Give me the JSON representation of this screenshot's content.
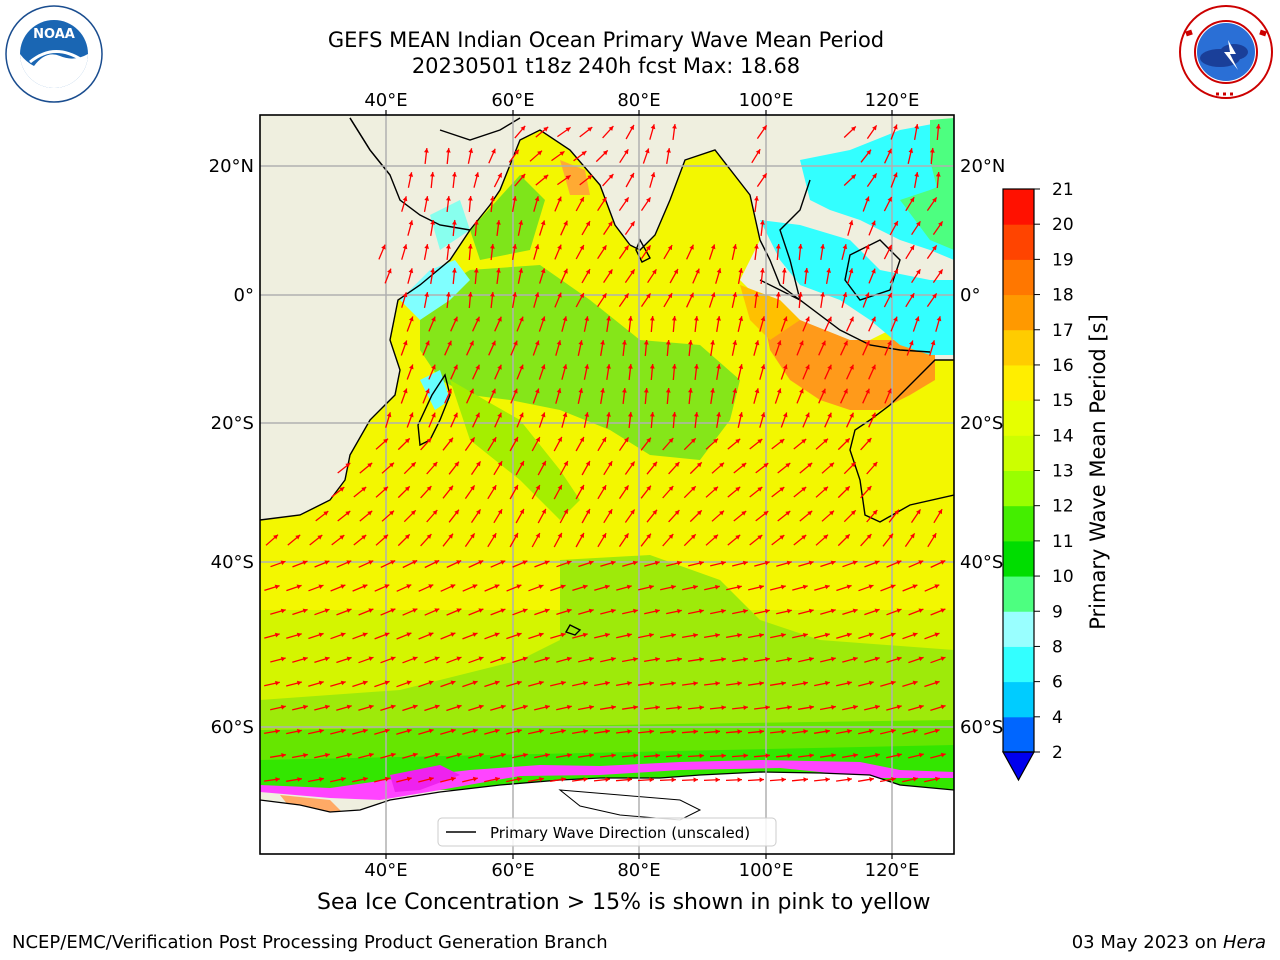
{
  "title": {
    "line1": "GEFS MEAN Indian Ocean Primary Wave Mean Period",
    "line2": "20230501 t18z 240h fcst   Max: 18.68"
  },
  "logos": {
    "left": {
      "icon": "noaa-logo",
      "text": "NOAA",
      "ring_text": "NATIONAL OCEANIC AND ATMOSPHERIC ADMINISTRATION · U.S. DEPARTMENT OF COMMERCE"
    },
    "right": {
      "icon": "nws-logo",
      "ring_text": "NATIONAL WEATHER SERVICE"
    }
  },
  "map": {
    "top_lon_labels": [
      "40°E",
      "60°E",
      "80°E",
      "100°E",
      "120°E"
    ],
    "bottom_lon_labels": [
      "40°E",
      "60°E",
      "80°E",
      "100°E",
      "120°E"
    ],
    "left_lat_labels": [
      "20°N",
      "0°",
      "20°S",
      "40°S",
      "60°S"
    ],
    "right_lat_labels": [
      "20°N",
      "0°",
      "20°S",
      "40°S",
      "60°S"
    ],
    "legend": "Primary Wave Direction (unscaled)",
    "land_color": "#efefdf",
    "arrow_color": "#ff0000"
  },
  "colorbar": {
    "label": "Primary Wave Mean Period [s]",
    "ticks": [
      "2",
      "4",
      "6",
      "8",
      "9",
      "10",
      "11",
      "12",
      "13",
      "14",
      "15",
      "16",
      "17",
      "18",
      "19",
      "20",
      "21"
    ],
    "colors": [
      "#0066ff",
      "#00ccff",
      "#33ffff",
      "#99ffff",
      "#4dff80",
      "#00dd00",
      "#44ee00",
      "#99ff00",
      "#ccff00",
      "#e6ff00",
      "#ffee00",
      "#ffcc00",
      "#ff9900",
      "#ff7700",
      "#ff4400",
      "#ff1100"
    ]
  },
  "caption": "Sea Ice Concentration > 15% is shown in pink to yellow",
  "footer": {
    "left": "NCEP/EMC/Verification Post Processing Product Generation Branch",
    "right_date": "03 May 2023 on ",
    "right_machine": "Hera"
  }
}
